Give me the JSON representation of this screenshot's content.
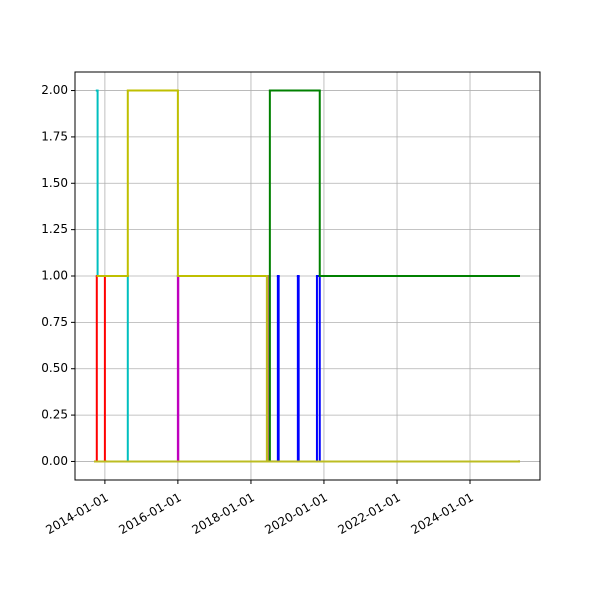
{
  "chart_data": {
    "type": "step",
    "xlim": [
      "2013-03-08",
      "2025-12-01"
    ],
    "xticks": [
      "2014-01-01",
      "2016-01-01",
      "2018-01-01",
      "2020-01-01",
      "2022-01-01",
      "2024-01-01"
    ],
    "ylim": [
      -0.1,
      2.1
    ],
    "yticks": [
      {
        "value": 0,
        "label": "0.00"
      },
      {
        "value": 0.25,
        "label": "0.25"
      },
      {
        "value": 0.5,
        "label": "0.50"
      },
      {
        "value": 0.75,
        "label": "0.75"
      },
      {
        "value": 1,
        "label": "1.00"
      },
      {
        "value": 1.25,
        "label": "1.25"
      },
      {
        "value": 1.5,
        "label": "1.50"
      },
      {
        "value": 1.75,
        "label": "1.75"
      },
      {
        "value": 2,
        "label": "2.00"
      }
    ],
    "grid": true,
    "series": [
      {
        "color": "#00bfbf",
        "x": [
          "2013-10-12",
          "2013-10-20",
          "2014-08-18",
          "2018-07-09"
        ],
        "values": [
          2,
          1,
          0,
          0
        ]
      },
      {
        "color": "#ff0000",
        "x": [
          "2013-09-24",
          "2013-10-12",
          "2014-01-01",
          "2014-01-10"
        ],
        "values": [
          0,
          1,
          0,
          0
        ]
      },
      {
        "color": "#bf00bf",
        "x": [
          "2014-01-01",
          "2016-01-01",
          "2016-01-05",
          "2018-06-10",
          "2018-06-20",
          "2025-05-05"
        ],
        "values": [
          0,
          1,
          0,
          1,
          0,
          0
        ]
      },
      {
        "color": "#bfbf00",
        "x": [
          "2013-10-20",
          "2014-08-18",
          "2016-01-01",
          "2016-04-10",
          "2018-06-10",
          "2025-05-05"
        ],
        "values": [
          1,
          2,
          1,
          1,
          0,
          0
        ]
      },
      {
        "color": "#0000ff",
        "x": [
          "2018-07-09",
          "2018-09-27",
          "2018-10-05",
          "2019-04-15",
          "2019-04-23",
          "2019-10-23",
          "2019-11-20",
          "2025-05-05"
        ],
        "values": [
          0,
          1,
          0,
          1,
          0,
          1,
          0,
          0
        ]
      },
      {
        "color": "#008000",
        "x": [
          "2018-06-20",
          "2018-07-09",
          "2019-11-20",
          "2025-05-05"
        ],
        "values": [
          0,
          2,
          1,
          1
        ]
      },
      {
        "color": "#bcbd22",
        "x": [
          "2013-09-24",
          "2018-06-10",
          "2018-06-15",
          "2025-05-05"
        ],
        "values": [
          0,
          1,
          0,
          0
        ]
      }
    ]
  }
}
